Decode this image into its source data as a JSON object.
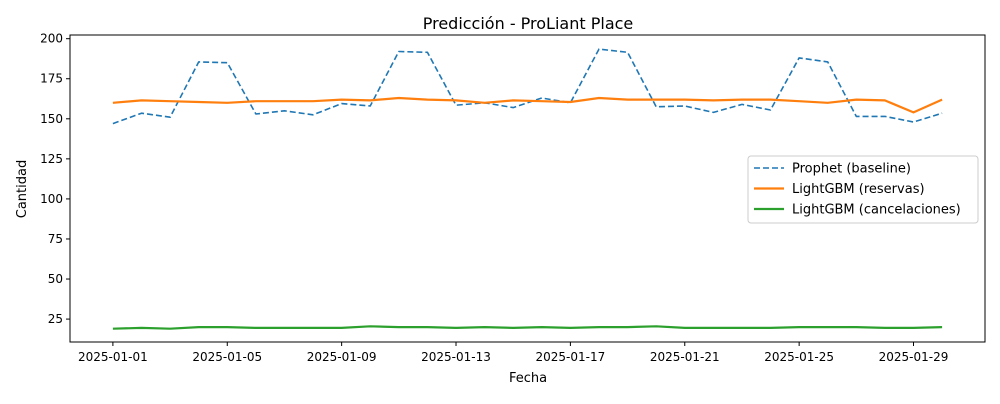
{
  "chart_data": {
    "type": "line",
    "title": "Predicción - ProLiant Place",
    "xlabel": "Fecha",
    "ylabel": "Cantidad",
    "x": [
      "2025-01-01",
      "2025-01-02",
      "2025-01-03",
      "2025-01-04",
      "2025-01-05",
      "2025-01-06",
      "2025-01-07",
      "2025-01-08",
      "2025-01-09",
      "2025-01-10",
      "2025-01-11",
      "2025-01-12",
      "2025-01-13",
      "2025-01-14",
      "2025-01-15",
      "2025-01-16",
      "2025-01-17",
      "2025-01-18",
      "2025-01-19",
      "2025-01-20",
      "2025-01-21",
      "2025-01-22",
      "2025-01-23",
      "2025-01-24",
      "2025-01-25",
      "2025-01-26",
      "2025-01-27",
      "2025-01-28",
      "2025-01-29",
      "2025-01-30"
    ],
    "xticks": [
      "2025-01-01",
      "2025-01-05",
      "2025-01-09",
      "2025-01-13",
      "2025-01-17",
      "2025-01-21",
      "2025-01-25",
      "2025-01-29"
    ],
    "yticks": [
      25,
      50,
      75,
      100,
      125,
      150,
      175,
      200
    ],
    "xlim": [
      -1.5,
      30.5
    ],
    "ylim": [
      10.7,
      202.3
    ],
    "legend_position": "center-right",
    "series": [
      {
        "name": "Prophet (baseline)",
        "color": "#1f77b4",
        "style": "dashed",
        "values": [
          147,
          153.5,
          151,
          185.5,
          185,
          153,
          155,
          152.5,
          159.5,
          158,
          192,
          191.5,
          158.5,
          160,
          157,
          163,
          160,
          193.5,
          191.5,
          157.5,
          158,
          154,
          159,
          155.5,
          188,
          185.5,
          151.5,
          151.5,
          148,
          153.5
        ]
      },
      {
        "name": "LightGBM (reservas)",
        "color": "#ff7f0e",
        "style": "solid",
        "values": [
          160,
          161.5,
          161,
          160.5,
          160,
          161,
          161,
          161,
          162,
          161.5,
          163,
          162,
          161.5,
          160,
          161.5,
          161,
          160.5,
          163,
          162,
          162,
          162,
          161.5,
          162,
          162,
          161,
          160,
          162,
          161.5,
          154,
          162
        ]
      },
      {
        "name": "LightGBM (cancelaciones)",
        "color": "#2ca02c",
        "style": "solid",
        "values": [
          19,
          19.5,
          19,
          20,
          20,
          19.5,
          19.5,
          19.5,
          19.5,
          20.5,
          20,
          20,
          19.5,
          20,
          19.5,
          20,
          19.5,
          20,
          20,
          20.5,
          19.5,
          19.5,
          19.5,
          19.5,
          20,
          20,
          20,
          19.5,
          19.5,
          20
        ]
      }
    ]
  }
}
